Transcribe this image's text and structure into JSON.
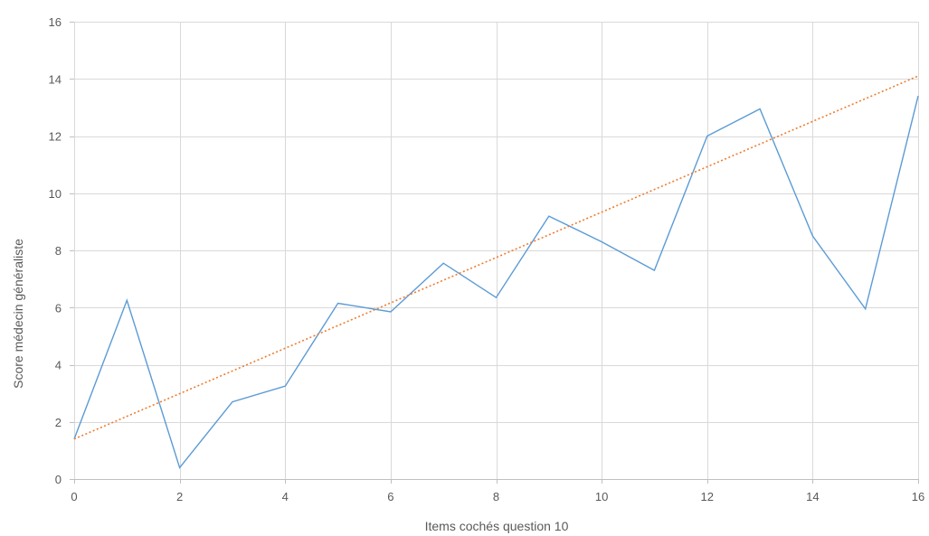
{
  "chart_data": {
    "type": "line",
    "title": "",
    "xlabel": "Items cochés question 10",
    "ylabel": "Score médecin généraliste",
    "xlim": [
      0,
      16
    ],
    "ylim": [
      0,
      16
    ],
    "xticks": [
      "0",
      "2",
      "4",
      "6",
      "8",
      "10",
      "12",
      "14",
      "16"
    ],
    "yticks": [
      "0",
      "2",
      "4",
      "6",
      "8",
      "10",
      "12",
      "14",
      "16"
    ],
    "grid": true,
    "legend": "none",
    "series": [
      {
        "color": "#5b9bd5",
        "style": "solid",
        "x": [
          0,
          1,
          2,
          3,
          4,
          5,
          6,
          7,
          8,
          9,
          10,
          11,
          12,
          13,
          14,
          15,
          16
        ],
        "y": [
          1.4,
          6.25,
          0.4,
          2.7,
          3.25,
          6.15,
          5.85,
          7.55,
          6.35,
          9.2,
          8.3,
          7.3,
          12.0,
          12.95,
          8.5,
          5.95,
          13.4
        ]
      },
      {
        "color": "#ed7d31",
        "style": "dotted",
        "trendline": "linear",
        "x": [
          0,
          16
        ],
        "y": [
          1.4,
          14.1
        ]
      }
    ]
  }
}
